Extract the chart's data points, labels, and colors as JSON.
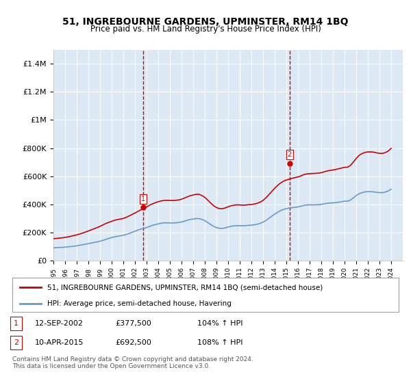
{
  "title": "51, INGREBOURNE GARDENS, UPMINSTER, RM14 1BQ",
  "subtitle": "Price paid vs. HM Land Registry's House Price Index (HPI)",
  "legend_line1": "51, INGREBOURNE GARDENS, UPMINSTER, RM14 1BQ (semi-detached house)",
  "legend_line2": "HPI: Average price, semi-detached house, Havering",
  "sale1_label": "1",
  "sale1_date": "12-SEP-2002",
  "sale1_price": "£377,500",
  "sale1_hpi": "104% ↑ HPI",
  "sale2_label": "2",
  "sale2_date": "10-APR-2015",
  "sale2_price": "£692,500",
  "sale2_hpi": "108% ↑ HPI",
  "footnote": "Contains HM Land Registry data © Crown copyright and database right 2024.\nThis data is licensed under the Open Government Licence v3.0.",
  "ylim": [
    0,
    1500000
  ],
  "yticks": [
    0,
    200000,
    400000,
    600000,
    800000,
    1000000,
    1200000,
    1400000
  ],
  "ylabels": [
    "£0",
    "£200K",
    "£400K",
    "£600K",
    "£800K",
    "£1M",
    "£1.2M",
    "£1.4M"
  ],
  "property_color": "#cc0000",
  "hpi_color": "#6699cc",
  "vline_color": "#cc0000",
  "marker1_x": 2002.71,
  "marker1_y": 377500,
  "marker2_x": 2015.27,
  "marker2_y": 692500,
  "xmin": 1995,
  "xmax": 2025,
  "background_color": "#dce9f5",
  "plot_bg": "#dce9f5",
  "hpi_data_x": [
    1995,
    1995.25,
    1995.5,
    1995.75,
    1996,
    1996.25,
    1996.5,
    1996.75,
    1997,
    1997.25,
    1997.5,
    1997.75,
    1998,
    1998.25,
    1998.5,
    1998.75,
    1999,
    1999.25,
    1999.5,
    1999.75,
    2000,
    2000.25,
    2000.5,
    2000.75,
    2001,
    2001.25,
    2001.5,
    2001.75,
    2002,
    2002.25,
    2002.5,
    2002.75,
    2003,
    2003.25,
    2003.5,
    2003.75,
    2004,
    2004.25,
    2004.5,
    2004.75,
    2005,
    2005.25,
    2005.5,
    2005.75,
    2006,
    2006.25,
    2006.5,
    2006.75,
    2007,
    2007.25,
    2007.5,
    2007.75,
    2008,
    2008.25,
    2008.5,
    2008.75,
    2009,
    2009.25,
    2009.5,
    2009.75,
    2010,
    2010.25,
    2010.5,
    2010.75,
    2011,
    2011.25,
    2011.5,
    2011.75,
    2012,
    2012.25,
    2012.5,
    2012.75,
    2013,
    2013.25,
    2013.5,
    2013.75,
    2014,
    2014.25,
    2014.5,
    2014.75,
    2015,
    2015.25,
    2015.5,
    2015.75,
    2016,
    2016.25,
    2016.5,
    2016.75,
    2017,
    2017.25,
    2017.5,
    2017.75,
    2018,
    2018.25,
    2018.5,
    2018.75,
    2019,
    2019.25,
    2019.5,
    2019.75,
    2020,
    2020.25,
    2020.5,
    2020.75,
    2021,
    2021.25,
    2021.5,
    2021.75,
    2022,
    2022.25,
    2022.5,
    2022.75,
    2023,
    2023.25,
    2023.5,
    2023.75,
    2024
  ],
  "hpi_data_y": [
    90000,
    91000,
    92000,
    93000,
    95000,
    97000,
    99000,
    101000,
    104000,
    108000,
    112000,
    116000,
    120000,
    124000,
    128000,
    132000,
    137000,
    143000,
    150000,
    157000,
    163000,
    168000,
    172000,
    175000,
    179000,
    185000,
    192000,
    200000,
    208000,
    216000,
    223000,
    228000,
    234000,
    242000,
    250000,
    255000,
    260000,
    265000,
    268000,
    268000,
    267000,
    267000,
    268000,
    270000,
    274000,
    280000,
    286000,
    292000,
    295000,
    298000,
    298000,
    292000,
    283000,
    270000,
    256000,
    243000,
    234000,
    229000,
    228000,
    232000,
    238000,
    243000,
    246000,
    248000,
    247000,
    247000,
    248000,
    250000,
    251000,
    254000,
    258000,
    264000,
    273000,
    285000,
    300000,
    315000,
    330000,
    343000,
    355000,
    363000,
    369000,
    373000,
    376000,
    378000,
    381000,
    386000,
    392000,
    395000,
    396000,
    396000,
    396000,
    397000,
    399000,
    403000,
    407000,
    409000,
    410000,
    412000,
    415000,
    418000,
    422000,
    422000,
    430000,
    445000,
    462000,
    475000,
    483000,
    488000,
    490000,
    490000,
    488000,
    485000,
    483000,
    483000,
    487000,
    495000,
    507000
  ],
  "property_data_x": [
    1995,
    1995.25,
    1995.5,
    1995.75,
    1996,
    1996.25,
    1996.5,
    1996.75,
    1997,
    1997.25,
    1997.5,
    1997.75,
    1998,
    1998.25,
    1998.5,
    1998.75,
    1999,
    1999.25,
    1999.5,
    1999.75,
    2000,
    2000.25,
    2000.5,
    2000.75,
    2001,
    2001.25,
    2001.5,
    2001.75,
    2002,
    2002.25,
    2002.5,
    2002.75,
    2003,
    2003.25,
    2003.5,
    2003.75,
    2004,
    2004.25,
    2004.5,
    2004.75,
    2005,
    2005.25,
    2005.5,
    2005.75,
    2006,
    2006.25,
    2006.5,
    2006.75,
    2007,
    2007.25,
    2007.5,
    2007.75,
    2008,
    2008.25,
    2008.5,
    2008.75,
    2009,
    2009.25,
    2009.5,
    2009.75,
    2010,
    2010.25,
    2010.5,
    2010.75,
    2011,
    2011.25,
    2011.5,
    2011.75,
    2012,
    2012.25,
    2012.5,
    2012.75,
    2013,
    2013.25,
    2013.5,
    2013.75,
    2014,
    2014.25,
    2014.5,
    2014.75,
    2015,
    2015.25,
    2015.5,
    2015.75,
    2016,
    2016.25,
    2016.5,
    2016.75,
    2017,
    2017.25,
    2017.5,
    2017.75,
    2018,
    2018.25,
    2018.5,
    2018.75,
    2019,
    2019.25,
    2019.5,
    2019.75,
    2020,
    2020.25,
    2020.5,
    2020.75,
    2021,
    2021.25,
    2021.5,
    2021.75,
    2022,
    2022.25,
    2022.5,
    2022.75,
    2023,
    2023.25,
    2023.5,
    2023.75,
    2024
  ],
  "property_data_y": [
    155000,
    157000,
    159000,
    161000,
    164000,
    168000,
    172000,
    177000,
    182000,
    188000,
    195000,
    202000,
    210000,
    218000,
    226000,
    234000,
    243000,
    253000,
    263000,
    271000,
    279000,
    286000,
    291000,
    295000,
    299000,
    307000,
    317000,
    327000,
    338000,
    349000,
    360000,
    370000,
    381000,
    393000,
    403000,
    411000,
    418000,
    424000,
    427000,
    428000,
    427000,
    427000,
    428000,
    431000,
    436000,
    444000,
    453000,
    461000,
    466000,
    471000,
    471000,
    462000,
    449000,
    430000,
    409000,
    390000,
    377000,
    369000,
    368000,
    374000,
    382000,
    389000,
    393000,
    396000,
    395000,
    394000,
    394000,
    397000,
    398000,
    402000,
    407000,
    415000,
    428000,
    446000,
    468000,
    491000,
    514000,
    534000,
    551000,
    564000,
    573000,
    579000,
    585000,
    590000,
    595000,
    602000,
    611000,
    616000,
    618000,
    619000,
    620000,
    622000,
    625000,
    631000,
    637000,
    641000,
    644000,
    648000,
    653000,
    658000,
    663000,
    664000,
    676000,
    700000,
    726000,
    748000,
    761000,
    769000,
    773000,
    773000,
    771000,
    766000,
    763000,
    762000,
    768000,
    779000,
    798000
  ]
}
